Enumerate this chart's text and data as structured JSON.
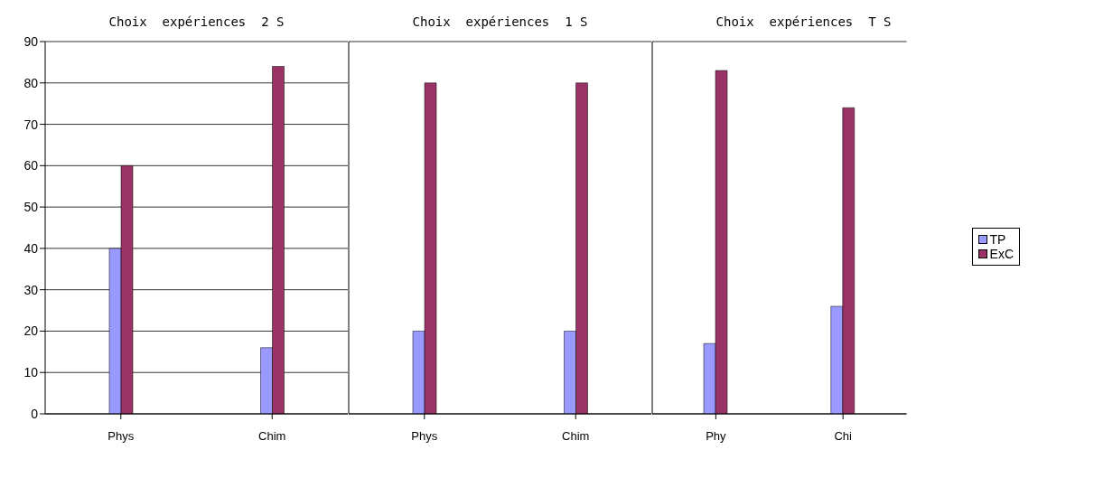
{
  "chart_data": [
    {
      "type": "bar",
      "title": "Choix  expériences  2 S",
      "categories": [
        "Phys",
        "Chim"
      ],
      "series": [
        {
          "color": "#9999ff",
          "values": [
            40,
            16
          ]
        },
        {
          "color": "#993366",
          "values": [
            60,
            84
          ]
        }
      ],
      "ylim": [
        0,
        90
      ],
      "yticks": [
        0,
        10,
        20,
        30,
        40,
        50,
        60,
        70,
        80,
        90
      ],
      "grid": "y",
      "legend": false
    },
    {
      "type": "bar",
      "title": "Choix  expériences  1 S",
      "categories": [
        "Phys",
        "Chim"
      ],
      "series": [
        {
          "color": "#9999ff",
          "values": [
            20,
            20
          ]
        },
        {
          "color": "#993366",
          "values": [
            80,
            80
          ]
        }
      ],
      "ylim": [
        0,
        90
      ],
      "yticks": [
        0,
        10,
        20,
        30,
        40,
        50,
        60,
        70,
        80,
        90
      ],
      "grid": "y",
      "legend": false,
      "tick_labels": "x"
    },
    {
      "type": "bar",
      "title": "Choix  expériences  T S",
      "categories": [
        "Phy",
        "Chi"
      ],
      "series": [
        {
          "name": "TP",
          "color": "#9999ff",
          "values": [
            17,
            26
          ]
        },
        {
          "name": "ExC",
          "color": "#993366",
          "values": [
            83,
            74
          ]
        }
      ],
      "ylim": [
        0,
        90
      ],
      "yticks": [
        0,
        10,
        20,
        30,
        40,
        50,
        60,
        70,
        80,
        90
      ],
      "grid": "y",
      "legend": "right",
      "tick_labels": "x"
    }
  ]
}
